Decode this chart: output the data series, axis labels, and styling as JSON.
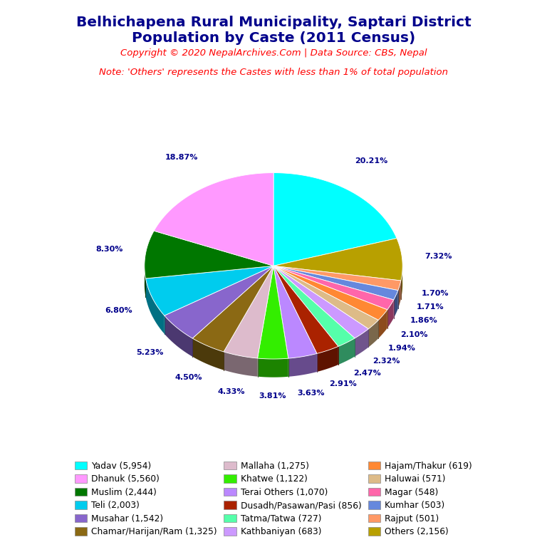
{
  "title_line1": "Belhichapena Rural Municipality, Saptari District",
  "title_line2": "Population by Caste (2011 Census)",
  "copyright": "Copyright © 2020 NepalArchives.Com | Data Source: CBS, Nepal",
  "note": "Note: 'Others' represents the Castes with less than 1% of total population",
  "slices": [
    {
      "label": "Yadav",
      "population": 5954,
      "pct": 20.21,
      "color": "#00FFFF"
    },
    {
      "label": "Others",
      "population": 2156,
      "pct": 7.32,
      "color": "#B8A000"
    },
    {
      "label": "Rajput",
      "population": 501,
      "pct": 1.7,
      "color": "#FF9966"
    },
    {
      "label": "Kumhar",
      "population": 503,
      "pct": 1.71,
      "color": "#6688DD"
    },
    {
      "label": "Magar",
      "population": 548,
      "pct": 1.86,
      "color": "#FF66AA"
    },
    {
      "label": "Hajam/Thakur",
      "population": 619,
      "pct": 2.1,
      "color": "#FF8833"
    },
    {
      "label": "Haluwai",
      "population": 571,
      "pct": 1.94,
      "color": "#DDBB88"
    },
    {
      "label": "Kathbaniyan",
      "population": 683,
      "pct": 2.32,
      "color": "#CC99FF"
    },
    {
      "label": "Tatma/Tatwa",
      "population": 727,
      "pct": 2.47,
      "color": "#55FFAA"
    },
    {
      "label": "Dusadh/Pasawan/Pasi",
      "population": 856,
      "pct": 2.91,
      "color": "#AA2200"
    },
    {
      "label": "Terai Others",
      "population": 1070,
      "pct": 3.63,
      "color": "#BB88FF"
    },
    {
      "label": "Khatwe",
      "population": 1122,
      "pct": 3.81,
      "color": "#33EE00"
    },
    {
      "label": "Mallaha",
      "population": 1275,
      "pct": 4.33,
      "color": "#DDBBCC"
    },
    {
      "label": "Chamar/Harijan/Ram",
      "population": 1325,
      "pct": 4.5,
      "color": "#8B6914"
    },
    {
      "label": "Musahar",
      "population": 1542,
      "pct": 5.23,
      "color": "#8866CC"
    },
    {
      "label": "Teli",
      "population": 2003,
      "pct": 6.8,
      "color": "#00CCEE"
    },
    {
      "label": "Muslim",
      "population": 2444,
      "pct": 8.3,
      "color": "#007700"
    },
    {
      "label": "Dhanuk",
      "population": 5560,
      "pct": 18.87,
      "color": "#FF99FF"
    }
  ],
  "legend_order": [
    {
      "label": "Yadav",
      "population": 5954
    },
    {
      "label": "Dhanuk",
      "population": 5560
    },
    {
      "label": "Muslim",
      "population": 2444
    },
    {
      "label": "Teli",
      "population": 2003
    },
    {
      "label": "Musahar",
      "population": 1542
    },
    {
      "label": "Chamar/Harijan/Ram",
      "population": 1325
    },
    {
      "label": "Mallaha",
      "population": 1275
    },
    {
      "label": "Khatwe",
      "population": 1122
    },
    {
      "label": "Terai Others",
      "population": 1070
    },
    {
      "label": "Dusadh/Pasawan/Pasi",
      "population": 856
    },
    {
      "label": "Tatma/Tatwa",
      "population": 727
    },
    {
      "label": "Kathbaniyan",
      "population": 683
    },
    {
      "label": "Hajam/Thakur",
      "population": 619
    },
    {
      "label": "Haluwai",
      "population": 571
    },
    {
      "label": "Magar",
      "population": 548
    },
    {
      "label": "Kumhar",
      "population": 503
    },
    {
      "label": "Rajput",
      "population": 501
    },
    {
      "label": "Others",
      "population": 2156
    }
  ],
  "title_color": "#00008B",
  "copyright_color": "#FF0000",
  "note_color": "#FF0000",
  "pct_label_color": "#00008B",
  "legend_color": "#000000",
  "background_color": "#FFFFFF"
}
